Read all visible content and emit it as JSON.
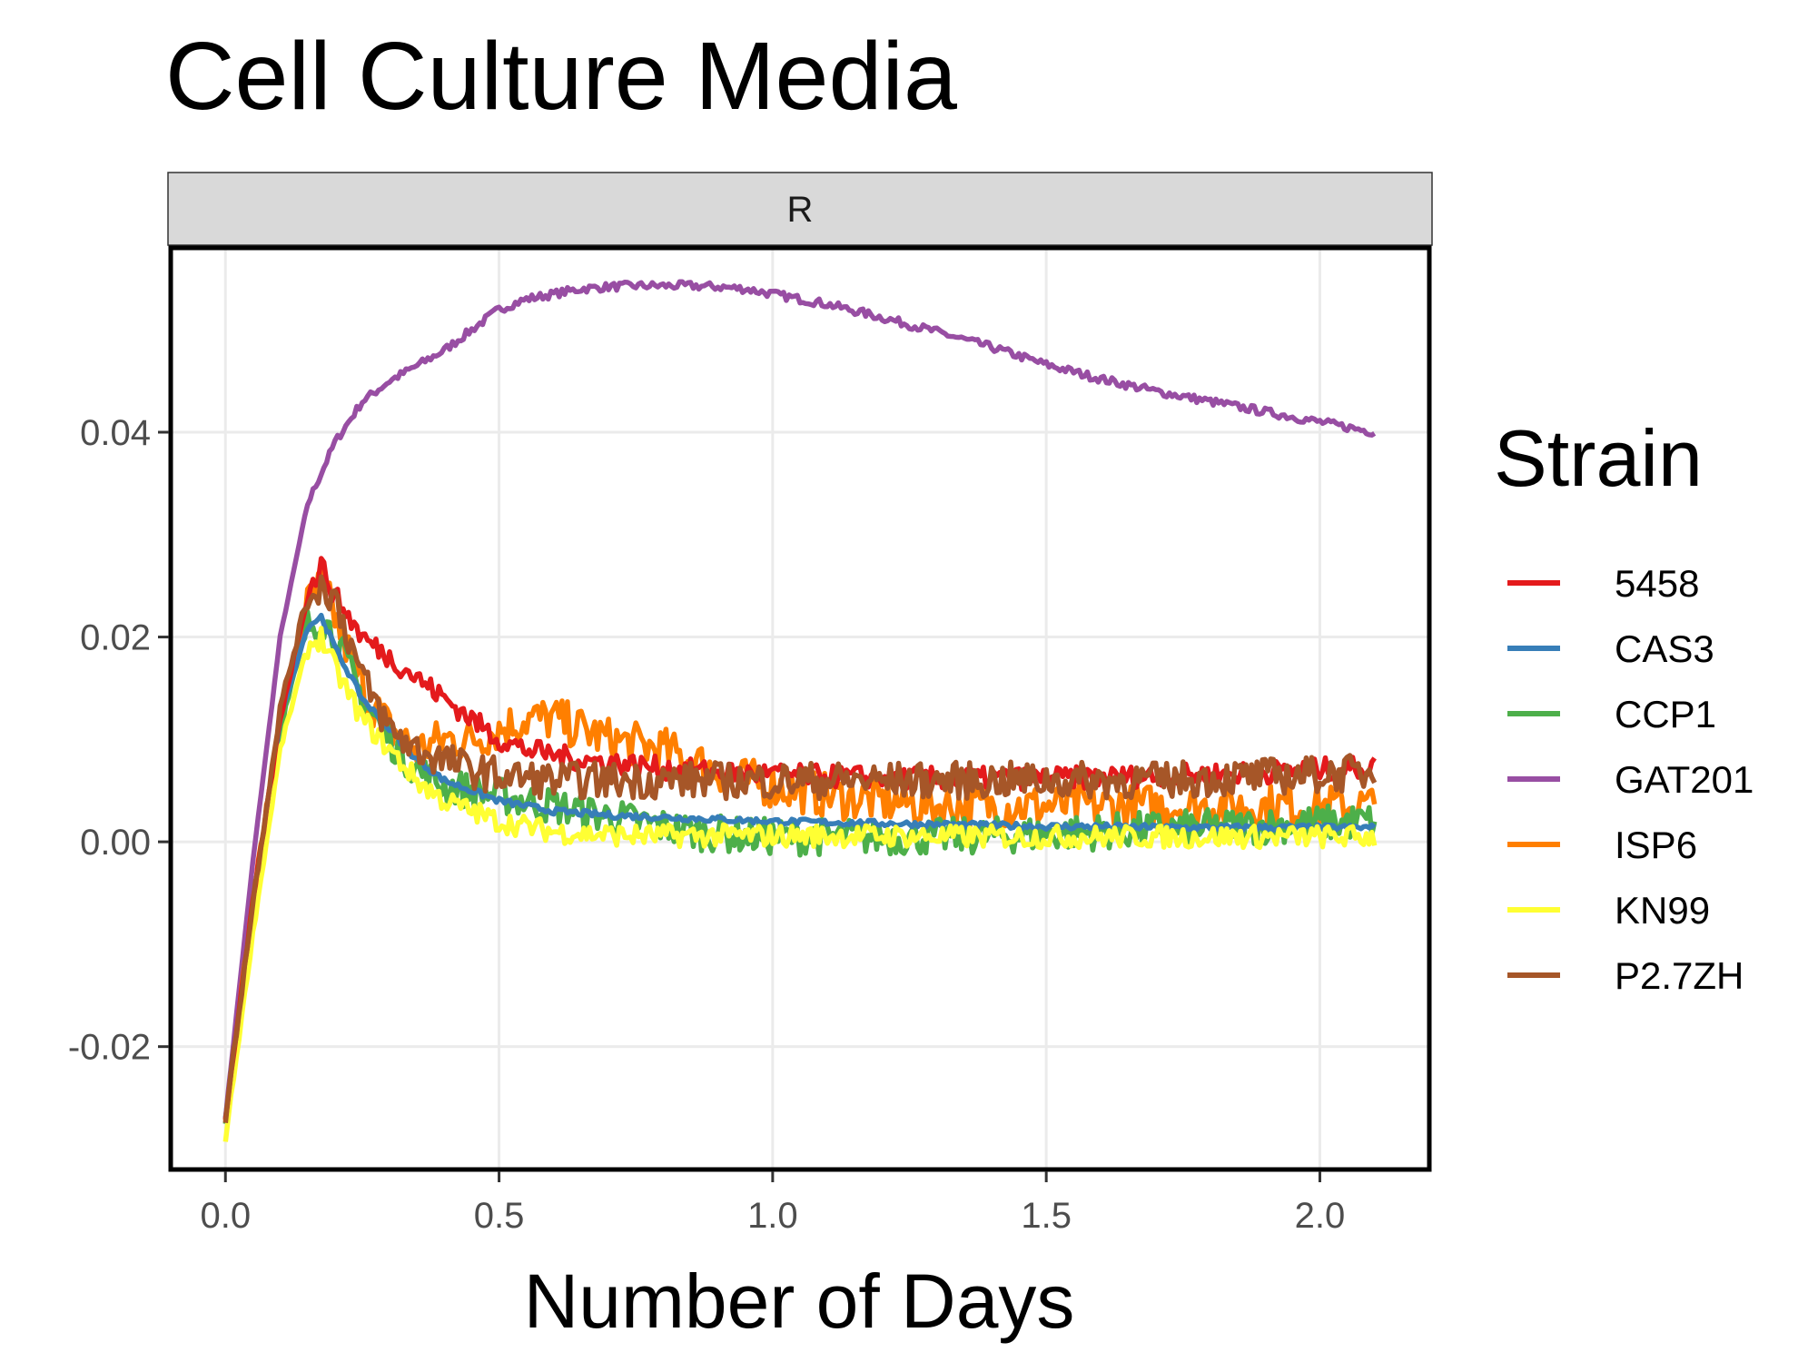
{
  "chart_data": {
    "type": "line",
    "title": "Cell Culture Media",
    "facet_label": "R",
    "xlabel": "Number of Days",
    "ylabel": "",
    "xlim": [
      -0.1,
      2.2
    ],
    "ylim": [
      -0.032,
      0.058
    ],
    "x_ticks": [
      0.0,
      0.5,
      1.0,
      1.5,
      2.0
    ],
    "x_tick_labels": [
      "0.0",
      "0.5",
      "1.0",
      "1.5",
      "2.0"
    ],
    "y_ticks": [
      -0.02,
      0.0,
      0.02,
      0.04
    ],
    "y_tick_labels": [
      "-0.02",
      "0.00",
      "0.02",
      "0.04"
    ],
    "grid": true,
    "legend": {
      "title": "Strain",
      "position": "right"
    },
    "x": [
      0.0,
      0.05,
      0.1,
      0.15,
      0.175,
      0.2,
      0.25,
      0.3,
      0.35,
      0.4,
      0.45,
      0.5,
      0.55,
      0.6,
      0.65,
      0.7,
      0.75,
      0.8,
      0.85,
      0.9,
      0.95,
      1.0,
      1.1,
      1.2,
      1.3,
      1.4,
      1.5,
      1.6,
      1.7,
      1.8,
      1.9,
      2.0,
      2.1
    ],
    "series": [
      {
        "name": "5458",
        "color": "#e41a1c",
        "values": [
          -0.027,
          -0.006,
          0.012,
          0.024,
          0.027,
          0.024,
          0.02,
          0.018,
          0.016,
          0.014,
          0.012,
          0.01,
          0.009,
          0.0085,
          0.008,
          0.0078,
          0.0075,
          0.0072,
          0.007,
          0.0068,
          0.0067,
          0.0066,
          0.0064,
          0.0063,
          0.0062,
          0.0062,
          0.0062,
          0.0063,
          0.0064,
          0.0066,
          0.0068,
          0.0071,
          0.0073
        ]
      },
      {
        "name": "CAS3",
        "color": "#377eb8",
        "values": [
          -0.027,
          -0.007,
          0.012,
          0.021,
          0.022,
          0.019,
          0.014,
          0.011,
          0.008,
          0.006,
          0.005,
          0.004,
          0.0035,
          0.003,
          0.0028,
          0.0026,
          0.0025,
          0.0024,
          0.0023,
          0.0022,
          0.0021,
          0.002,
          0.0019,
          0.0018,
          0.0017,
          0.0016,
          0.0015,
          0.0015,
          0.0014,
          0.0014,
          0.0014,
          0.0014,
          0.0014
        ]
      },
      {
        "name": "CCP1",
        "color": "#4daf4a",
        "values": [
          -0.027,
          -0.007,
          0.011,
          0.021,
          0.022,
          0.02,
          0.014,
          0.01,
          0.007,
          0.0055,
          0.005,
          0.0045,
          0.004,
          0.0035,
          0.003,
          0.0025,
          0.002,
          0.0015,
          0.001,
          0.0008,
          0.0006,
          0.0005,
          0.0005,
          0.0005,
          0.0005,
          0.0006,
          0.0008,
          0.001,
          0.0012,
          0.0014,
          0.0016,
          0.0018,
          0.002
        ]
      },
      {
        "name": "GAT201",
        "color": "#984ea3",
        "values": [
          -0.027,
          -0.002,
          0.02,
          0.033,
          0.036,
          0.039,
          0.043,
          0.045,
          0.0465,
          0.048,
          0.05,
          0.052,
          0.053,
          0.0535,
          0.054,
          0.0542,
          0.0543,
          0.0543,
          0.0543,
          0.0542,
          0.054,
          0.0535,
          0.0525,
          0.0512,
          0.0498,
          0.0483,
          0.0466,
          0.0452,
          0.044,
          0.043,
          0.042,
          0.041,
          0.04
        ]
      },
      {
        "name": "ISP6",
        "color": "#ff7f00",
        "values": [
          -0.027,
          -0.006,
          0.012,
          0.023,
          0.025,
          0.022,
          0.015,
          0.011,
          0.009,
          0.01,
          0.01,
          0.011,
          0.012,
          0.012,
          0.011,
          0.01,
          0.0095,
          0.009,
          0.008,
          0.007,
          0.006,
          0.0055,
          0.0045,
          0.004,
          0.0035,
          0.0035,
          0.0035,
          0.0035,
          0.0035,
          0.0035,
          0.0035,
          0.0035,
          0.0035
        ]
      },
      {
        "name": "KN99",
        "color": "#ffff33",
        "values": [
          -0.029,
          -0.009,
          0.009,
          0.019,
          0.02,
          0.017,
          0.012,
          0.009,
          0.006,
          0.004,
          0.003,
          0.002,
          0.0015,
          0.001,
          0.0008,
          0.0007,
          0.0006,
          0.0006,
          0.0006,
          0.0006,
          0.0006,
          0.0006,
          0.0006,
          0.0006,
          0.0005,
          0.0005,
          0.0005,
          0.0005,
          0.0005,
          0.0005,
          0.0005,
          0.0005,
          0.0005
        ]
      },
      {
        "name": "P2.7ZH",
        "color": "#a65628",
        "values": [
          -0.027,
          -0.006,
          0.013,
          0.024,
          0.025,
          0.024,
          0.016,
          0.011,
          0.009,
          0.008,
          0.007,
          0.0065,
          0.0062,
          0.006,
          0.006,
          0.006,
          0.006,
          0.006,
          0.006,
          0.006,
          0.006,
          0.006,
          0.006,
          0.006,
          0.006,
          0.006,
          0.006,
          0.006,
          0.006,
          0.0062,
          0.0064,
          0.0066,
          0.0068
        ]
      }
    ]
  }
}
